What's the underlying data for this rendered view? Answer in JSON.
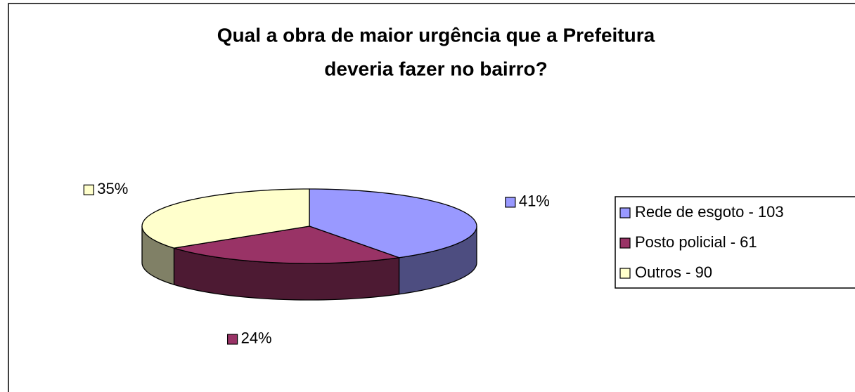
{
  "chart_data": {
    "type": "pie",
    "title": [
      "Qual a obra de maior urgência que a Prefeitura",
      "deveria fazer no bairro?"
    ],
    "categories": [
      "Rede de esgoto - 103",
      "Posto policial - 61",
      "Outros - 90"
    ],
    "values": [
      41,
      24,
      35
    ],
    "value_labels": [
      "41%",
      "24%",
      "35%"
    ],
    "colors": [
      "#9999ff",
      "#993366",
      "#ffffcc"
    ],
    "legend": "right"
  }
}
